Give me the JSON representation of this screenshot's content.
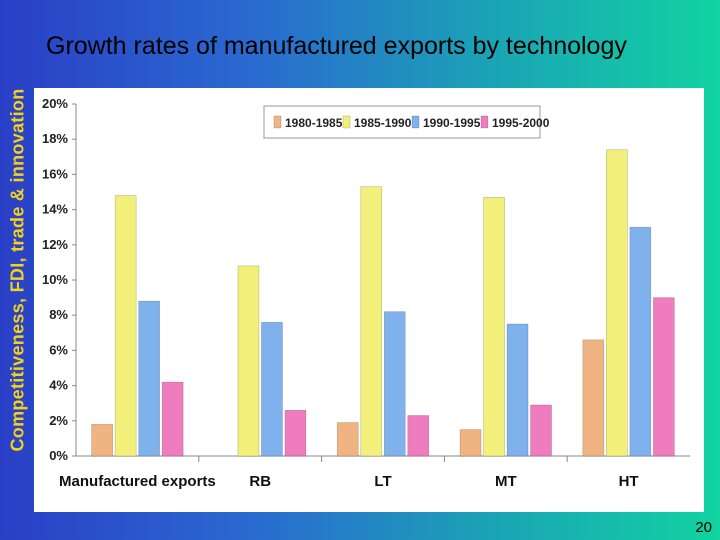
{
  "sidebar": {
    "title": "Competitiveness, FDI, trade & innovation"
  },
  "header": {
    "title": "Growth rates of manufactured exports by technology"
  },
  "footer": {
    "page_number": "20"
  },
  "colors": {
    "series": [
      "#f0b482",
      "#f2f07a",
      "#7fb2ec",
      "#f07cc0"
    ]
  },
  "chart_data": {
    "type": "bar",
    "categories": [
      "Manufactured exports",
      "RB",
      "LT",
      "MT",
      "HT"
    ],
    "series": [
      {
        "name": "1980-1985",
        "values": [
          1.8,
          0,
          1.9,
          1.5,
          6.6
        ]
      },
      {
        "name": "1985-1990",
        "values": [
          14.8,
          10.8,
          15.3,
          14.7,
          17.4
        ]
      },
      {
        "name": "1990-1995",
        "values": [
          8.8,
          7.6,
          8.2,
          7.5,
          13.0
        ]
      },
      {
        "name": "1995-2000",
        "values": [
          4.2,
          2.6,
          2.3,
          2.9,
          9.0
        ]
      }
    ],
    "yticks": [
      "0%",
      "2%",
      "4%",
      "6%",
      "8%",
      "10%",
      "12%",
      "14%",
      "16%",
      "18%",
      "20%"
    ],
    "ylim": [
      0,
      20
    ],
    "legend_position": "top-center",
    "grid": false
  }
}
